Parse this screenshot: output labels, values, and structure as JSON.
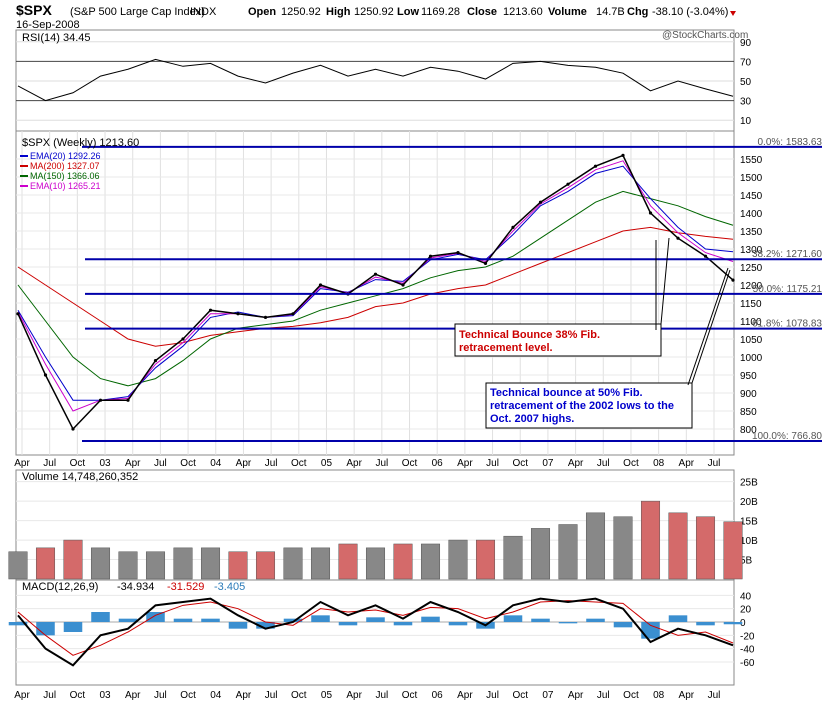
{
  "header": {
    "symbol": "$SPX",
    "name": "(S&P 500 Large Cap Index)",
    "exchange": "INDX",
    "date": "16-Sep-2008",
    "open_label": "Open",
    "open": "1250.92",
    "high_label": "High",
    "high": "1250.92",
    "low_label": "Low",
    "low": "1169.28",
    "close_label": "Close",
    "close": "1213.60",
    "volume_label": "Volume",
    "volume": "14.7B",
    "chg_label": "Chg",
    "chg": "-38.10 (-3.04%)",
    "watermark": "@StockCharts.com"
  },
  "rsi": {
    "label": "RSI(14) 34.45",
    "ticks": [
      "90",
      "70",
      "50",
      "30",
      "10"
    ]
  },
  "price": {
    "title": "$SPX (Weekly) 1213.60",
    "legend": [
      {
        "text": "EMA(20) 1292.26",
        "color": "#0000cc"
      },
      {
        "text": "MA(200) 1327.07",
        "color": "#cc0000"
      },
      {
        "text": "MA(150) 1366.06",
        "color": "#006600"
      },
      {
        "text": "EMA(10) 1265.21",
        "color": "#cc00cc"
      }
    ],
    "ticks": [
      "1550",
      "1500",
      "1450",
      "1400",
      "1350",
      "1300",
      "1250",
      "1200",
      "1150",
      "1100",
      "1050",
      "1000",
      "950",
      "900",
      "850",
      "800"
    ],
    "fib_levels": [
      {
        "label": "0.0%: 1583.63"
      },
      {
        "label": "38.2%: 1271.60"
      },
      {
        "label": "50.0%: 1175.21"
      },
      {
        "label": "61.8%: 1078.83"
      },
      {
        "label": "100.0%: 766.80"
      }
    ],
    "annotation1": [
      "Technical Bounce 38% Fib.",
      "retracement level."
    ],
    "annotation2": [
      "Technical bounce at 50% Fib.",
      "retracement of the 2002 lows to the",
      "Oct. 2007 highs."
    ]
  },
  "volume": {
    "label": "Volume 14,748,260,352",
    "ticks": [
      "25B",
      "20B",
      "15B",
      "10B",
      "5B"
    ]
  },
  "macd": {
    "label": "MACD(12,26,9)",
    "value1": "-34.934",
    "value2": "-31.529",
    "value3": "-3.405",
    "ticks": [
      "40",
      "20",
      "0",
      "-20",
      "-40",
      "-60"
    ]
  },
  "x_axis": {
    "labels": [
      "Apr",
      "Jul",
      "Oct",
      "03",
      "Apr",
      "Jul",
      "Oct",
      "04",
      "Apr",
      "Jul",
      "Oct",
      "05",
      "Apr",
      "Jul",
      "Oct",
      "06",
      "Apr",
      "Jul",
      "Oct",
      "07",
      "Apr",
      "Jul",
      "Oct",
      "08",
      "Apr",
      "Jul"
    ]
  },
  "chart_data": {
    "type": "line",
    "title": "$SPX (Weekly) 1213.60",
    "xlabel": "",
    "ylabel": "",
    "ylim": [
      766.8,
      1583.63
    ],
    "x": [
      "2002-Apr",
      "2002-Jul",
      "2002-Oct",
      "2003-Jan",
      "2003-Apr",
      "2003-Jul",
      "2003-Oct",
      "2004-Jan",
      "2004-Apr",
      "2004-Jul",
      "2004-Oct",
      "2005-Jan",
      "2005-Apr",
      "2005-Jul",
      "2005-Oct",
      "2006-Jan",
      "2006-Apr",
      "2006-Jul",
      "2006-Oct",
      "2007-Jan",
      "2007-Apr",
      "2007-Jul",
      "2007-Oct",
      "2008-Jan",
      "2008-Apr",
      "2008-Jul",
      "2008-Sep"
    ],
    "series": [
      {
        "name": "$SPX",
        "values": [
          1120,
          950,
          800,
          880,
          880,
          990,
          1050,
          1130,
          1120,
          1110,
          1120,
          1200,
          1175,
          1230,
          1200,
          1280,
          1290,
          1260,
          1360,
          1430,
          1480,
          1530,
          1560,
          1400,
          1330,
          1280,
          1213.6
        ]
      },
      {
        "name": "EMA(20)",
        "values": [
          1130,
          1000,
          880,
          880,
          890,
          970,
          1030,
          1110,
          1125,
          1110,
          1115,
          1190,
          1180,
          1215,
          1210,
          1270,
          1285,
          1270,
          1340,
          1420,
          1460,
          1510,
          1530,
          1440,
          1360,
          1300,
          1292.26
        ]
      },
      {
        "name": "MA(200)",
        "values": [
          1250,
          1200,
          1150,
          1100,
          1050,
          1030,
          1040,
          1060,
          1070,
          1080,
          1085,
          1095,
          1110,
          1140,
          1150,
          1175,
          1190,
          1200,
          1230,
          1260,
          1290,
          1320,
          1350,
          1360,
          1345,
          1335,
          1327.07
        ]
      },
      {
        "name": "MA(150)",
        "values": [
          1200,
          1100,
          1000,
          940,
          920,
          940,
          990,
          1050,
          1080,
          1090,
          1100,
          1130,
          1150,
          1170,
          1190,
          1220,
          1240,
          1250,
          1280,
          1330,
          1380,
          1430,
          1460,
          1440,
          1420,
          1390,
          1366.06
        ]
      },
      {
        "name": "EMA(10)",
        "values": [
          1125,
          980,
          850,
          880,
          885,
          980,
          1040,
          1120,
          1120,
          1110,
          1118,
          1195,
          1178,
          1222,
          1205,
          1275,
          1288,
          1265,
          1350,
          1425,
          1470,
          1520,
          1545,
          1420,
          1345,
          1290,
          1265.21
        ]
      }
    ],
    "fibonacci": [
      {
        "level": "0.0%",
        "value": 1583.63
      },
      {
        "level": "38.2%",
        "value": 1271.6
      },
      {
        "level": "50.0%",
        "value": 1175.21
      },
      {
        "level": "61.8%",
        "value": 1078.83
      },
      {
        "level": "100.0%",
        "value": 766.8
      }
    ],
    "panels": {
      "rsi": {
        "last": 34.45,
        "ylim": [
          0,
          100
        ],
        "values": [
          45,
          30,
          38,
          55,
          62,
          72,
          65,
          68,
          55,
          48,
          58,
          66,
          55,
          62,
          55,
          64,
          60,
          52,
          68,
          70,
          66,
          64,
          58,
          40,
          50,
          42,
          34.45
        ]
      },
      "volume": {
        "last": 14748260352,
        "ylim_billions": [
          0,
          28
        ],
        "values_billions": [
          7,
          8,
          10,
          8,
          7,
          7,
          8,
          8,
          7,
          7,
          8,
          8,
          9,
          8,
          9,
          9,
          10,
          10,
          11,
          13,
          14,
          17,
          16,
          20,
          17,
          16,
          14.7
        ]
      },
      "macd": {
        "macd": -34.934,
        "signal": -31.529,
        "histogram": -3.405,
        "ylim": [
          -70,
          45
        ],
        "macd_values": [
          10,
          -40,
          -65,
          -20,
          -10,
          25,
          30,
          35,
          10,
          -10,
          0,
          30,
          10,
          25,
          5,
          30,
          15,
          -5,
          25,
          35,
          30,
          35,
          20,
          -30,
          -10,
          -20,
          -34.934
        ],
        "signal_values": [
          15,
          -20,
          -50,
          -35,
          -15,
          10,
          25,
          30,
          20,
          0,
          -5,
          20,
          15,
          18,
          10,
          22,
          20,
          5,
          15,
          30,
          32,
          30,
          28,
          -5,
          -20,
          -15,
          -31.529
        ]
      }
    }
  }
}
